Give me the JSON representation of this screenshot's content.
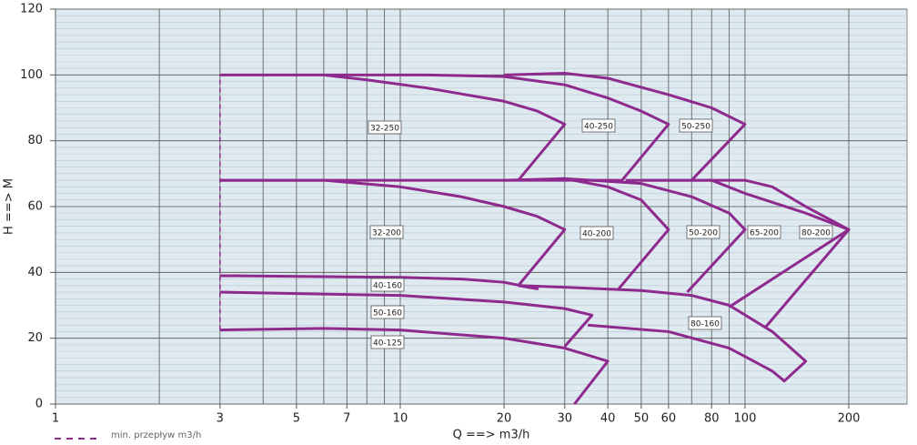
{
  "chart_data": {
    "type": "line",
    "xlabel": "Q ==> m3/h",
    "ylabel": "H ==> M",
    "xscale": "log",
    "xlim": [
      1,
      295
    ],
    "ylim": [
      0,
      120
    ],
    "xticks": [
      1,
      3,
      5,
      7,
      10,
      20,
      30,
      40,
      50,
      60,
      80,
      100,
      200
    ],
    "xminor": [
      2,
      4,
      6,
      8,
      9,
      70,
      90
    ],
    "yticks": [
      0,
      20,
      40,
      60,
      80,
      100,
      120
    ],
    "yminor_step": 2,
    "grid": true,
    "legend": "bottom-left",
    "series": [
      {
        "name": "32-250",
        "color": "#8e2a8e",
        "x": [
          3,
          6,
          8,
          12,
          20,
          25,
          30,
          22,
          3
        ],
        "values": [
          100,
          100,
          98.5,
          96,
          92,
          89,
          85,
          68,
          68
        ]
      },
      {
        "name": "40-250",
        "color": "#8e2a8e",
        "x": [
          6,
          12,
          20,
          30,
          40,
          50,
          60,
          44,
          22
        ],
        "values": [
          100,
          100,
          99.5,
          97,
          93,
          89,
          85,
          68,
          68
        ]
      },
      {
        "name": "50-250",
        "color": "#8e2a8e",
        "x": [
          20,
          30,
          40,
          60,
          80,
          100,
          70,
          45
        ],
        "values": [
          100,
          100.5,
          99,
          94,
          90,
          85,
          68,
          68
        ]
      },
      {
        "name": "32-200",
        "color": "#8e2a8e",
        "x": [
          3,
          6,
          10,
          15,
          20,
          25,
          30,
          22
        ],
        "values": [
          68,
          68,
          66,
          63,
          60,
          57,
          53,
          36
        ]
      },
      {
        "name": "40-200",
        "color": "#8e2a8e",
        "x": [
          20,
          30,
          40,
          50,
          60,
          43
        ],
        "values": [
          68,
          68.5,
          66,
          62,
          53,
          35
        ]
      },
      {
        "name": "50-200",
        "color": "#8e2a8e",
        "x": [
          30,
          50,
          70,
          90,
          100,
          68
        ],
        "values": [
          68.5,
          67,
          63,
          58,
          53,
          34
        ]
      },
      {
        "name": "65-200",
        "color": "#8e2a8e",
        "x": [
          50,
          80,
          100,
          150,
          200,
          90
        ],
        "values": [
          68,
          68,
          64,
          58,
          53,
          29.5
        ]
      },
      {
        "name": "80-200",
        "color": "#8e2a8e",
        "x": [
          70,
          100,
          120,
          150,
          200,
          115
        ],
        "values": [
          68,
          68,
          66,
          60,
          53,
          23.5
        ]
      },
      {
        "name": "40-160",
        "color": "#8e2a8e",
        "x": [
          3,
          10,
          15,
          20,
          25,
          22
        ],
        "values": [
          39,
          38.5,
          38,
          37,
          35,
          36
        ]
      },
      {
        "name": "50-160",
        "color": "#8e2a8e",
        "x": [
          3,
          10,
          20,
          30,
          36,
          30
        ],
        "values": [
          34,
          33,
          31,
          29,
          27,
          17.5
        ]
      },
      {
        "name": "40-125",
        "color": "#8e2a8e",
        "x": [
          3,
          6,
          10,
          20,
          30,
          40,
          32
        ],
        "values": [
          22.5,
          23,
          22.5,
          20,
          17,
          13,
          0
        ]
      },
      {
        "name": "80-160",
        "color": "#8e2a8e",
        "x": [
          22,
          30,
          50,
          70,
          90,
          120,
          150,
          130,
          120,
          90,
          60,
          35
        ],
        "values": [
          36,
          35.5,
          34.5,
          33,
          30,
          22,
          13,
          7,
          10,
          17,
          22,
          24
        ]
      },
      {
        "name": "min. przepływ m3/h",
        "color": "#8e2a8e",
        "dashed": true,
        "x": [
          3,
          3
        ],
        "values": [
          22.5,
          100
        ]
      }
    ]
  }
}
